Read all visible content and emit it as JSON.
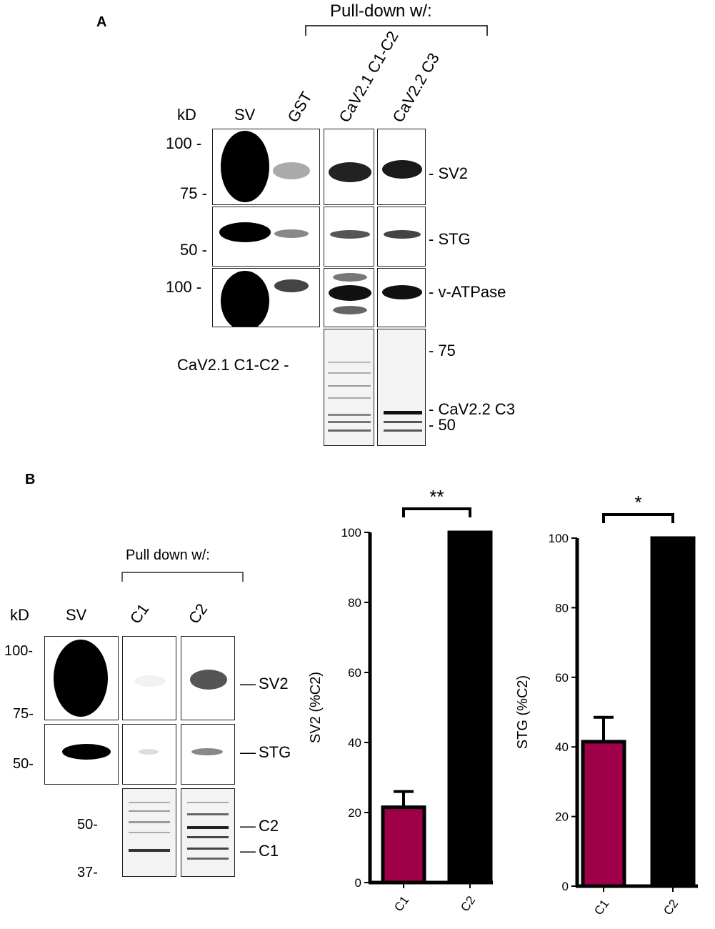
{
  "panel_a": {
    "label": "A",
    "pulldown_header": "Pull-down w/:",
    "kd_header": "kD",
    "lanes": [
      "SV",
      "GST",
      "CaV2.1 C1-C2",
      "CaV2.2 C3"
    ],
    "mw_markers": [
      "100 -",
      "75 -",
      "50 -",
      "100 -"
    ],
    "right_labels": [
      "- SV2",
      "- STG",
      "- v-ATPase"
    ],
    "gel_left_label": "CaV2.1 C1-C2 -",
    "gel_right_labels": [
      "- 75",
      "- CaV2.2 C3",
      "- 50"
    ]
  },
  "panel_b": {
    "label": "B",
    "pulldown_header": "Pull down w/:",
    "kd_header": "kD",
    "lanes": [
      "SV",
      "C1",
      "C2"
    ],
    "mw_markers": [
      "100-",
      "75-",
      "50-",
      "50-",
      "37-"
    ],
    "right_labels": [
      "SV2",
      "STG",
      "C2",
      "C1"
    ]
  },
  "chart_data": [
    {
      "type": "bar",
      "categories": [
        "C1",
        "C2"
      ],
      "values": [
        21.5,
        100
      ],
      "errors": [
        4.5,
        0
      ],
      "ylabel": "SV2 (%C2)",
      "ylim": [
        0,
        100
      ],
      "yticks": [
        "0",
        "20",
        "40",
        "60",
        "80",
        "100"
      ],
      "significance": "**",
      "colors": [
        "#a0004a",
        "#000000"
      ]
    },
    {
      "type": "bar",
      "categories": [
        "C1",
        "C2"
      ],
      "values": [
        41.5,
        100
      ],
      "errors": [
        7,
        0
      ],
      "ylabel": "STG (%C2)",
      "ylim": [
        0,
        100
      ],
      "yticks": [
        "0",
        "20",
        "40",
        "60",
        "80",
        "100"
      ],
      "significance": "*",
      "colors": [
        "#a0004a",
        "#000000"
      ]
    }
  ]
}
